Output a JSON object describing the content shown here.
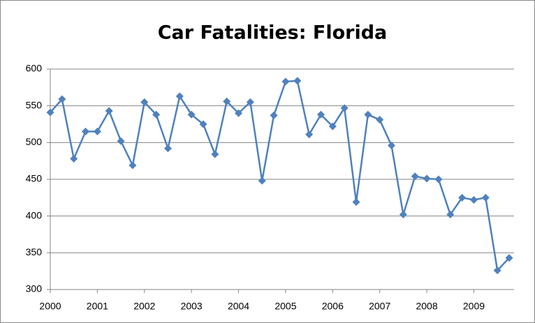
{
  "chart_data": {
    "type": "line",
    "title": "Car Fatalities: Florida",
    "x": [
      2000,
      2000.25,
      2000.5,
      2000.75,
      2001,
      2001.25,
      2001.5,
      2001.75,
      2002,
      2002.25,
      2002.5,
      2002.75,
      2003,
      2003.25,
      2003.5,
      2003.75,
      2004,
      2004.25,
      2004.5,
      2004.75,
      2005,
      2005.25,
      2005.5,
      2005.75,
      2006,
      2006.25,
      2006.5,
      2006.75,
      2007,
      2007.25,
      2007.5,
      2007.75,
      2008,
      2008.25,
      2008.5,
      2008.75,
      2009,
      2009.25,
      2009.5,
      2009.75
    ],
    "series": [
      {
        "name": "Car Fatalities",
        "color": "#4f81bd",
        "values": [
          541,
          559,
          478,
          515,
          515,
          543,
          502,
          469,
          555,
          538,
          492,
          563,
          538,
          525,
          484,
          556,
          540,
          555,
          448,
          537,
          583,
          584,
          511,
          538,
          522,
          547,
          419,
          538,
          531,
          496,
          402,
          454,
          451,
          450,
          402,
          425,
          422,
          425,
          326,
          343
        ]
      }
    ],
    "xlim": [
      2000,
      2009.75
    ],
    "xticks": [
      2000,
      2001,
      2002,
      2003,
      2004,
      2005,
      2006,
      2007,
      2008,
      2009
    ],
    "ylim": [
      300,
      600
    ],
    "yticks": [
      300,
      350,
      400,
      450,
      500,
      550,
      600
    ],
    "grid": true
  }
}
